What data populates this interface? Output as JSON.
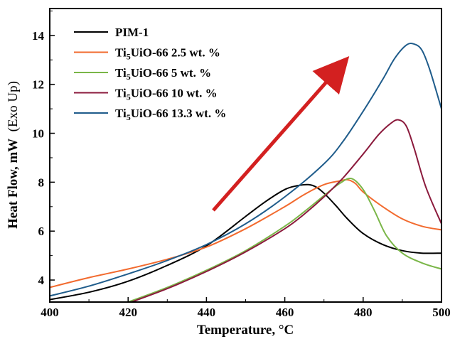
{
  "chart_data": {
    "type": "line",
    "xlabel": "Temperature, °C",
    "ylabel_main": "Heat Flow, mW",
    "ylabel_paren": "(Exo Up)",
    "xlim": [
      400,
      500
    ],
    "ylim": [
      3.1,
      15.1
    ],
    "xticks": [
      400,
      420,
      440,
      460,
      480,
      500
    ],
    "yticks": [
      4,
      6,
      8,
      10,
      12,
      14
    ],
    "legend_position": "top-left",
    "annotation": "red arrow pointing up-right",
    "series": [
      {
        "name": "PIM-1",
        "name_parts": [
          "PIM-1",
          "",
          ""
        ],
        "color": "#000000",
        "x": [
          400,
          410,
          420,
          430,
          440,
          450,
          455,
          460,
          463,
          466,
          468,
          470,
          473,
          476,
          480,
          485,
          490,
          495,
          500
        ],
        "y": [
          3.2,
          3.5,
          3.95,
          4.6,
          5.4,
          6.6,
          7.2,
          7.7,
          7.85,
          7.9,
          7.8,
          7.55,
          7.05,
          6.5,
          5.9,
          5.45,
          5.2,
          5.1,
          5.1
        ]
      },
      {
        "name": "Ti5UiO-66 2.5 wt. %",
        "name_parts": [
          "Ti",
          "5",
          "UiO-66  2.5 wt. %"
        ],
        "color": "#f26a2e",
        "x": [
          400,
          410,
          420,
          430,
          440,
          450,
          460,
          465,
          470,
          474,
          476,
          478,
          480,
          485,
          490,
          495,
          500
        ],
        "y": [
          3.7,
          4.1,
          4.45,
          4.85,
          5.35,
          6.1,
          7.0,
          7.5,
          7.9,
          8.05,
          8.1,
          7.95,
          7.6,
          7.0,
          6.5,
          6.2,
          6.05
        ]
      },
      {
        "name": "Ti5UiO-66 5 wt. %",
        "name_parts": [
          "Ti",
          "5",
          "UiO-66  5 wt. %"
        ],
        "color": "#7ab648",
        "x": [
          420,
          430,
          440,
          450,
          460,
          465,
          470,
          474,
          477,
          480,
          483,
          486,
          490,
          495,
          500
        ],
        "y": [
          3.1,
          3.7,
          4.4,
          5.2,
          6.2,
          6.8,
          7.45,
          7.95,
          8.15,
          7.7,
          6.8,
          5.8,
          5.1,
          4.7,
          4.45
        ]
      },
      {
        "name": "Ti5UiO-66 10 wt. %",
        "name_parts": [
          "Ti",
          "5",
          "UiO-66  10 wt. %"
        ],
        "color": "#8b1a3c",
        "x": [
          420,
          430,
          440,
          450,
          460,
          465,
          470,
          475,
          480,
          484,
          487,
          489,
          491,
          493,
          496,
          500
        ],
        "y": [
          3.05,
          3.65,
          4.35,
          5.15,
          6.1,
          6.7,
          7.4,
          8.2,
          9.15,
          9.95,
          10.4,
          10.55,
          10.3,
          9.4,
          7.8,
          6.3
        ]
      },
      {
        "name": "Ti5UiO-66 13.3 wt. %",
        "name_parts": [
          "Ti",
          "5",
          "UiO-66 13.3 wt. %"
        ],
        "color": "#1f5c8b",
        "x": [
          400,
          410,
          420,
          430,
          440,
          450,
          460,
          470,
          475,
          480,
          485,
          488,
          491,
          493,
          495,
          497,
          500
        ],
        "y": [
          3.35,
          3.75,
          4.25,
          4.8,
          5.45,
          6.3,
          7.4,
          8.75,
          9.7,
          10.9,
          12.2,
          13.05,
          13.6,
          13.65,
          13.4,
          12.6,
          11.0
        ]
      }
    ]
  }
}
